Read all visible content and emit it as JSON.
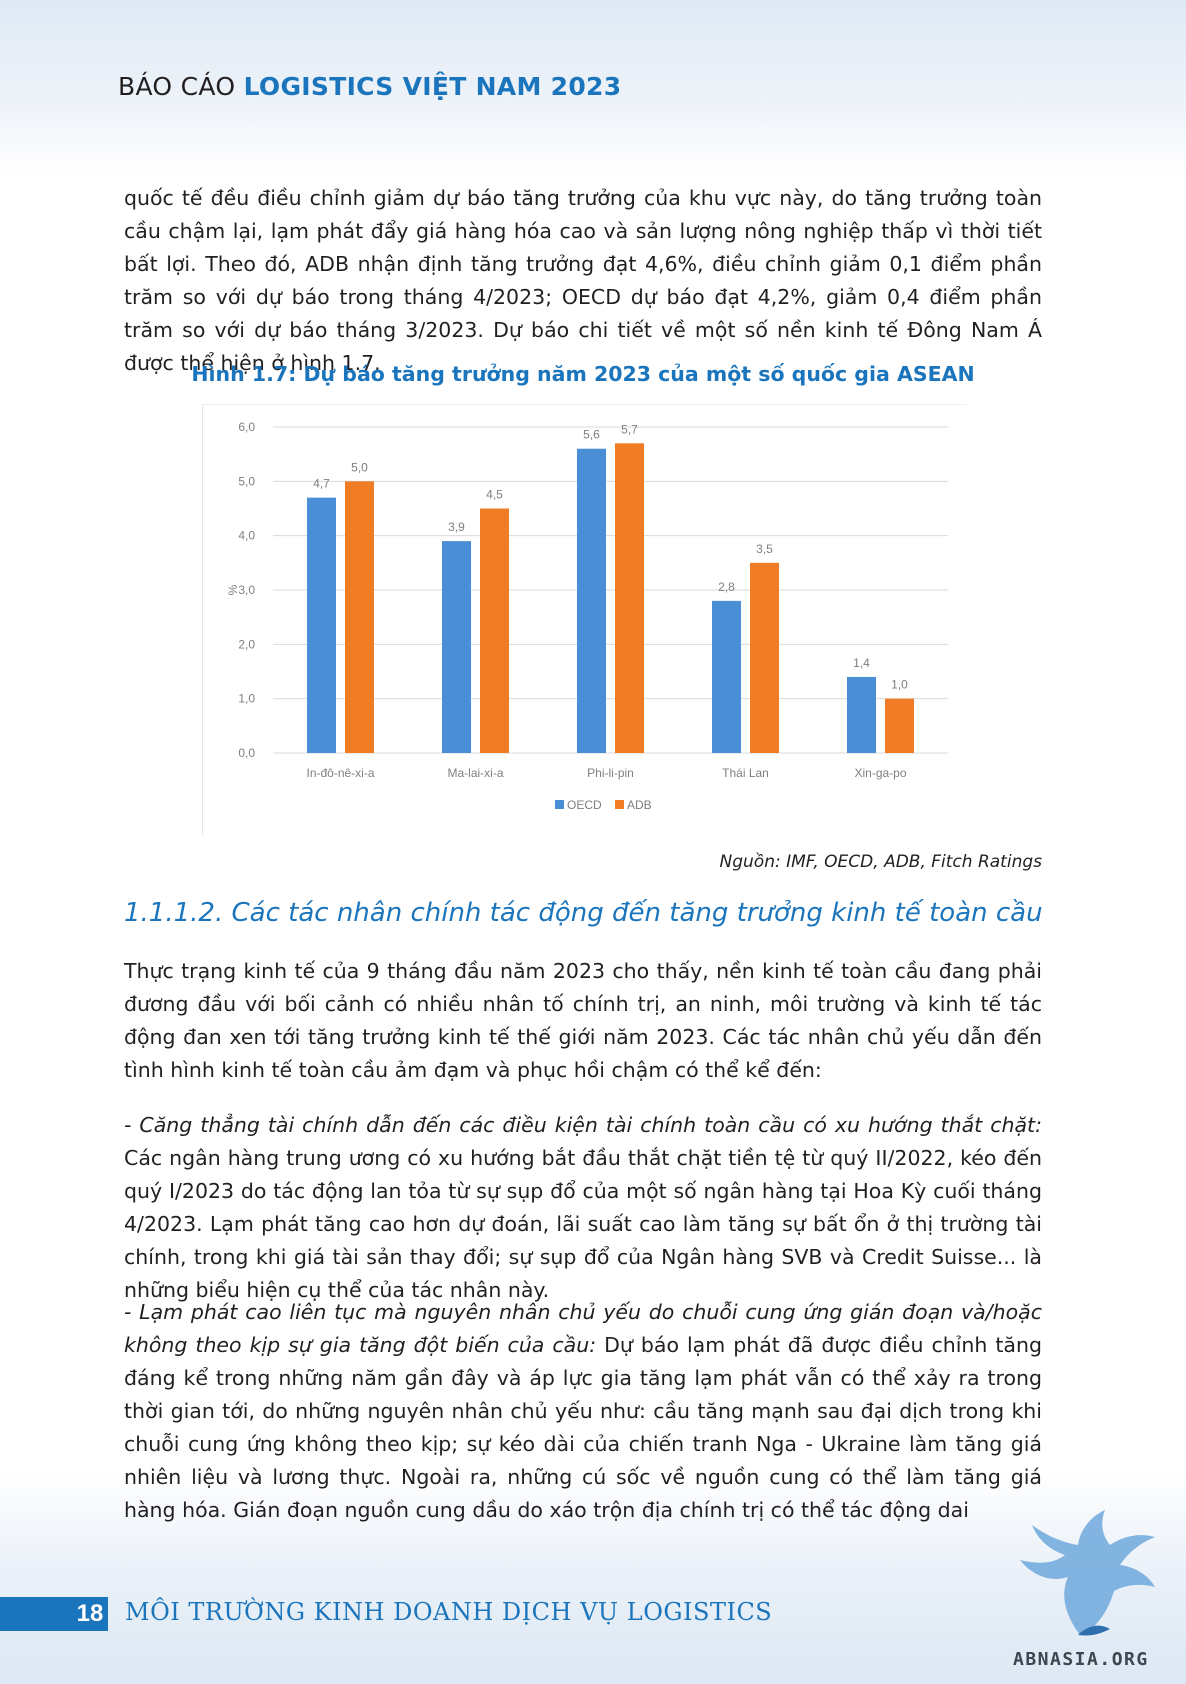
{
  "header": {
    "prefix": "BÁO CÁO",
    "brand": "LOGISTICS VIỆT NAM 2023"
  },
  "intro_paragraph": "quốc tế đều điều chỉnh giảm dự báo tăng trưởng của khu vực này, do tăng trưởng toàn cầu chậm lại, lạm phát đẩy giá hàng hóa cao và sản lượng nông nghiệp thấp vì thời tiết bất lợi. Theo đó, ADB nhận định tăng trưởng đạt 4,6%, điều chỉnh giảm 0,1 điểm phần trăm so với dự báo trong tháng 4/2023; OECD dự báo đạt 4,2%, giảm 0,4 điểm phần trăm so với dự báo tháng 3/2023. Dự báo chi tiết về một số nền kinh tế Đông Nam Á được thể hiện ở hình 1.7.",
  "figure_title": "Hình 1.7: Dự báo tăng trưởng năm 2023 của một số quốc gia ASEAN",
  "chart_data": {
    "type": "bar",
    "title": "",
    "xlabel": "",
    "ylabel": "%",
    "ylim": [
      0,
      6
    ],
    "yticks": [
      "0,0",
      "1,0",
      "2,0",
      "3,0",
      "4,0",
      "5,0",
      "6,0"
    ],
    "categories": [
      "In-đô-nê-xi-a",
      "Ma-lai-xi-a",
      "Phi-li-pin",
      "Thái Lan",
      "Xin-ga-po"
    ],
    "series": [
      {
        "name": "OECD",
        "color": "#4a8fd6",
        "values": [
          4.7,
          3.9,
          5.6,
          2.8,
          1.4
        ],
        "labels": [
          "4,7",
          "3,9",
          "5,6",
          "2,8",
          "1,4"
        ]
      },
      {
        "name": "ADB",
        "color": "#f07d26",
        "values": [
          5.0,
          4.5,
          5.7,
          3.5,
          1.0
        ],
        "labels": [
          "5,0",
          "4,5",
          "5,7",
          "3,5",
          "1,0"
        ]
      }
    ],
    "grid": true,
    "legend_position": "bottom"
  },
  "source_note": "Nguồn: IMF, OECD, ADB, Fitch Ratings",
  "section_title": "1.1.1.2. Các tác nhân chính tác động đến tăng trưởng kinh tế toàn cầu",
  "paragraph_1": "Thực trạng kinh tế của 9 tháng đầu năm 2023 cho thấy, nền kinh tế toàn cầu đang phải đương đầu với bối cảnh có nhiều nhân tố chính trị, an ninh, môi trường và kinh tế tác động đan xen tới tăng trưởng kinh tế thế giới năm 2023. Các tác nhân chủ yếu dẫn đến tình hình kinh tế toàn cầu ảm đạm và phục hồi chậm có thể kể đến:",
  "paragraph_2": {
    "lead": "- Căng thẳng tài chính dẫn đến các điều kiện tài chính toàn cầu có xu hướng thắt chặt:",
    "body": " Các ngân hàng trung ương có xu hướng bắt đầu thắt chặt tiền tệ từ quý II/2022, kéo đến quý I/2023 do tác động lan tỏa từ sự sụp đổ của một số ngân hàng tại Hoa Kỳ cuối tháng 4/2023. Lạm phát tăng cao hơn dự đoán, lãi suất cao làm tăng sự bất ổn ở thị trường tài chính, trong khi giá tài sản thay đổi; sự sụp đổ của Ngân hàng SVB và Credit Suisse... là những biểu hiện cụ thể của tác nhân này."
  },
  "paragraph_3": {
    "lead": "- Lạm phát cao liên tục mà nguyên nhân chủ yếu do chuỗi cung ứng gián đoạn và/hoặc không theo kịp sự gia tăng đột biến của cầu:",
    "body": " Dự báo lạm phát đã được điều chỉnh tăng đáng kể trong những năm gần đây và áp lực gia tăng lạm phát vẫn có thể xảy ra trong thời gian tới, do những nguyên nhân chủ yếu như: cầu tăng mạnh sau đại dịch trong khi chuỗi cung ứng không theo kịp; sự kéo dài của chiến tranh Nga - Ukraine làm tăng giá nhiên liệu và lương thực. Ngoài ra, những cú sốc về nguồn cung có thể làm tăng giá hàng hóa. Gián đoạn nguồn cung dầu do xáo trộn địa chính trị có thể tác động dai"
  },
  "footer": {
    "page_number": "18",
    "title": "MÔI TRƯỜNG KINH DOANH DỊCH VỤ LOGISTICS"
  },
  "watermark": {
    "text": "ABNASIA.ORG",
    "icon": "eagle-logo-icon"
  },
  "colors": {
    "brand_blue": "#1b75bc",
    "oecd_blue": "#4a8fd6",
    "adb_orange": "#f07d26"
  }
}
